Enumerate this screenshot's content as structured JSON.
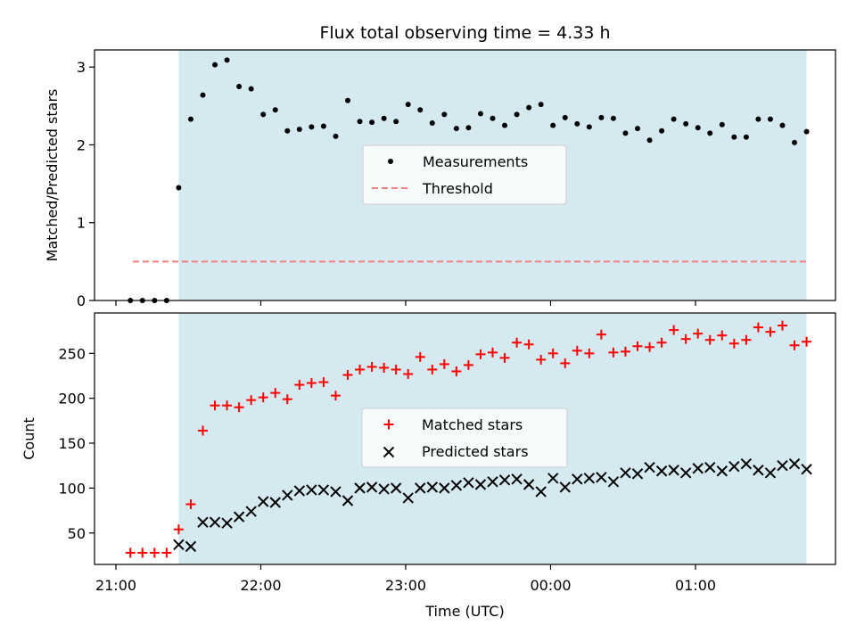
{
  "chart_data": [
    {
      "type": "scatter",
      "title": "Flux total observing time = 4.33 h",
      "ylabel": "Matched/Predicted stars",
      "xlabel": "",
      "ylim": [
        0,
        3.22
      ],
      "yticks": [
        "0",
        "1",
        "2",
        "3"
      ],
      "observing_window": {
        "start": "21:26",
        "end": "01:46",
        "color": "#d4eaf0"
      },
      "legend": {
        "position": "center",
        "entries": [
          "Measurements",
          "Threshold"
        ]
      },
      "threshold": {
        "name": "Threshold",
        "value": 0.5,
        "x_start": "21:07",
        "x_end": "01:46",
        "color": "#f08080"
      },
      "series": [
        {
          "name": "Measurements",
          "marker": "dot",
          "color": "#000000",
          "x": [
            "21:06",
            "21:11",
            "21:16",
            "21:21",
            "21:26",
            "21:31",
            "21:36",
            "21:41",
            "21:46",
            "21:51",
            "21:56",
            "22:01",
            "22:06",
            "22:11",
            "22:16",
            "22:21",
            "22:26",
            "22:31",
            "22:36",
            "22:41",
            "22:46",
            "22:51",
            "22:56",
            "23:01",
            "23:06",
            "23:11",
            "23:16",
            "23:21",
            "23:26",
            "23:31",
            "23:36",
            "23:41",
            "23:46",
            "23:51",
            "23:56",
            "00:01",
            "00:06",
            "00:11",
            "00:16",
            "00:21",
            "00:26",
            "00:31",
            "00:36",
            "00:41",
            "00:46",
            "00:51",
            "00:56",
            "01:01",
            "01:06",
            "01:11",
            "01:16",
            "01:21",
            "01:26",
            "01:31",
            "01:36",
            "01:41",
            "01:46"
          ],
          "y": [
            0.0,
            0.0,
            0.0,
            0.0,
            1.45,
            2.33,
            2.64,
            3.03,
            3.09,
            2.75,
            2.72,
            2.39,
            2.45,
            2.18,
            2.2,
            2.23,
            2.24,
            2.11,
            2.57,
            2.3,
            2.29,
            2.34,
            2.3,
            2.52,
            2.45,
            2.28,
            2.39,
            2.21,
            2.22,
            2.4,
            2.34,
            2.25,
            2.39,
            2.48,
            2.52,
            2.25,
            2.35,
            2.27,
            2.23,
            2.35,
            2.34,
            2.15,
            2.21,
            2.06,
            2.18,
            2.33,
            2.27,
            2.22,
            2.15,
            2.26,
            2.1,
            2.1,
            2.33,
            2.33,
            2.25,
            2.03,
            2.17
          ]
        }
      ]
    },
    {
      "type": "scatter",
      "title": "",
      "xlabel": "Time (UTC)",
      "ylabel": "Count",
      "ylim": [
        15,
        295
      ],
      "yticks": [
        "50",
        "100",
        "150",
        "200",
        "250"
      ],
      "xticks": [
        "21:00",
        "22:00",
        "23:00",
        "00:00",
        "01:00"
      ],
      "observing_window": {
        "start": "21:26",
        "end": "01:46",
        "color": "#d4eaf0"
      },
      "legend": {
        "position": "center",
        "entries": [
          "Matched stars",
          "Predicted stars"
        ]
      },
      "series": [
        {
          "name": "Matched stars",
          "marker": "plus",
          "color": "#ff0000",
          "x": [
            "21:06",
            "21:11",
            "21:16",
            "21:21",
            "21:26",
            "21:31",
            "21:36",
            "21:41",
            "21:46",
            "21:51",
            "21:56",
            "22:01",
            "22:06",
            "22:11",
            "22:16",
            "22:21",
            "22:26",
            "22:31",
            "22:36",
            "22:41",
            "22:46",
            "22:51",
            "22:56",
            "23:01",
            "23:06",
            "23:11",
            "23:16",
            "23:21",
            "23:26",
            "23:31",
            "23:36",
            "23:41",
            "23:46",
            "23:51",
            "23:56",
            "00:01",
            "00:06",
            "00:11",
            "00:16",
            "00:21",
            "00:26",
            "00:31",
            "00:36",
            "00:41",
            "00:46",
            "00:51",
            "00:56",
            "01:01",
            "01:06",
            "01:11",
            "01:16",
            "01:21",
            "01:26",
            "01:31",
            "01:36",
            "01:41",
            "01:46"
          ],
          "y": [
            28,
            28,
            28,
            28,
            54,
            82,
            164,
            192,
            192,
            190,
            198,
            201,
            206,
            199,
            215,
            217,
            218,
            203,
            226,
            232,
            235,
            234,
            232,
            227,
            246,
            232,
            238,
            230,
            237,
            249,
            251,
            245,
            262,
            260,
            243,
            250,
            239,
            253,
            250,
            271,
            251,
            252,
            258,
            257,
            262,
            276,
            266,
            272,
            265,
            270,
            261,
            265,
            279,
            274,
            281,
            259,
            263
          ]
        },
        {
          "name": "Predicted stars",
          "marker": "x",
          "color": "#000000",
          "x": [
            "21:26",
            "21:31",
            "21:36",
            "21:41",
            "21:46",
            "21:51",
            "21:56",
            "22:01",
            "22:06",
            "22:11",
            "22:16",
            "22:21",
            "22:26",
            "22:31",
            "22:36",
            "22:41",
            "22:46",
            "22:51",
            "22:56",
            "23:01",
            "23:06",
            "23:11",
            "23:16",
            "23:21",
            "23:26",
            "23:31",
            "23:36",
            "23:41",
            "23:46",
            "23:51",
            "23:56",
            "00:01",
            "00:06",
            "00:11",
            "00:16",
            "00:21",
            "00:26",
            "00:31",
            "00:36",
            "00:41",
            "00:46",
            "00:51",
            "00:56",
            "01:01",
            "01:06",
            "01:11",
            "01:16",
            "01:21",
            "01:26",
            "01:31",
            "01:36",
            "01:41",
            "01:46"
          ],
          "y": [
            37,
            35,
            62,
            62,
            61,
            68,
            74,
            85,
            84,
            92,
            97,
            98,
            98,
            96,
            86,
            100,
            101,
            99,
            100,
            89,
            100,
            101,
            100,
            103,
            106,
            104,
            107,
            109,
            110,
            104,
            96,
            111,
            101,
            110,
            111,
            112,
            107,
            117,
            116,
            123,
            119,
            120,
            117,
            122,
            123,
            119,
            124,
            127,
            120,
            117,
            125,
            127,
            121
          ]
        }
      ]
    }
  ]
}
